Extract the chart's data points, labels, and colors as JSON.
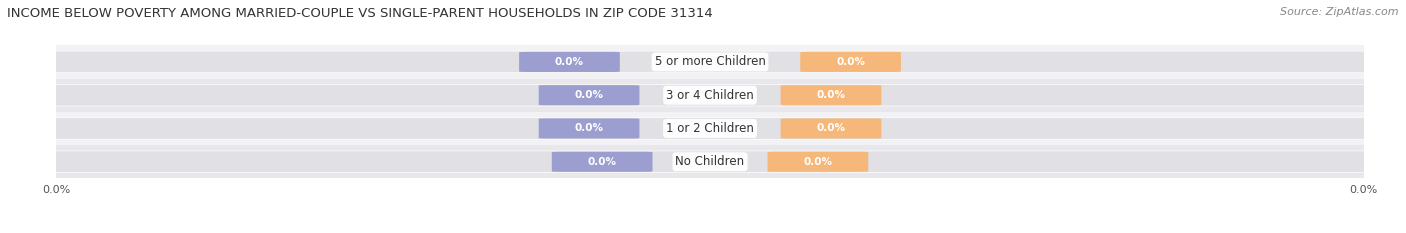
{
  "title": "INCOME BELOW POVERTY AMONG MARRIED-COUPLE VS SINGLE-PARENT HOUSEHOLDS IN ZIP CODE 31314",
  "source": "Source: ZipAtlas.com",
  "categories": [
    "No Children",
    "1 or 2 Children",
    "3 or 4 Children",
    "5 or more Children"
  ],
  "married_values": [
    "0.0%",
    "0.0%",
    "0.0%",
    "0.0%"
  ],
  "single_values": [
    "0.0%",
    "0.0%",
    "0.0%",
    "0.0%"
  ],
  "married_color": "#9b9ece",
  "single_color": "#f5b87a",
  "bg_bar_color": "#e0e0e5",
  "row_even_color": "#f2f2f4",
  "row_odd_color": "#e8e8ec",
  "title_fontsize": 9.5,
  "source_fontsize": 8,
  "cat_fontsize": 8.5,
  "val_fontsize": 7.5,
  "tick_fontsize": 8,
  "axis_label_left": "0.0%",
  "axis_label_right": "0.0%"
}
